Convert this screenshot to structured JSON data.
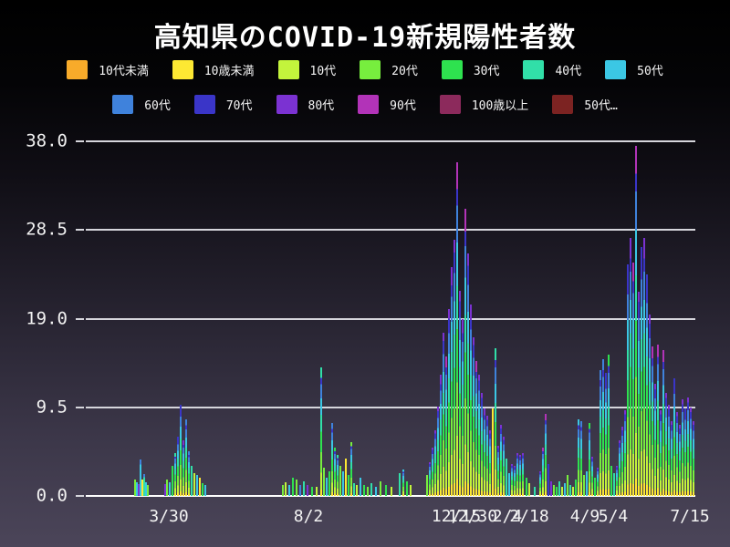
{
  "title": "高知県のCOVID-19新規陽性者数",
  "legend": {
    "position": "top",
    "rows": [
      [
        {
          "label": "10代未満",
          "color": "#f8ab2a"
        },
        {
          "label": "10歳未満",
          "color": "#fde833"
        },
        {
          "label": "10代",
          "color": "#c3f43c"
        },
        {
          "label": "20代",
          "color": "#77ee3e"
        },
        {
          "label": "30代",
          "color": "#2ee24f"
        },
        {
          "label": "40代",
          "color": "#31dfa8"
        },
        {
          "label": "50代",
          "color": "#3bc7e4"
        }
      ],
      [
        {
          "label": "60代",
          "color": "#3f82dc"
        },
        {
          "label": "70代",
          "color": "#3a35c8"
        },
        {
          "label": "80代",
          "color": "#7b32d2"
        },
        {
          "label": "90代",
          "color": "#b233b8"
        },
        {
          "label": "100歳以上",
          "color": "#8c2a5c"
        },
        {
          "label": "50代…",
          "color": "#7c2322"
        }
      ]
    ]
  },
  "chart_data": {
    "type": "bar",
    "stacked": true,
    "title": "高知県のCOVID-19新規陽性者数",
    "xlabel": "",
    "ylabel": "",
    "ylim": [
      0,
      38
    ],
    "grid": true,
    "background": "dark-gradient",
    "series_names": [
      "10代未満",
      "10歳未満",
      "10代",
      "20代",
      "30代",
      "40代",
      "50代",
      "60代",
      "70代",
      "80代",
      "90代",
      "100歳以上",
      "50代…"
    ],
    "y_ticks": [
      {
        "v": 0,
        "label": "0.0"
      },
      {
        "v": 9.5,
        "label": "9.5"
      },
      {
        "v": 19,
        "label": "19.0"
      },
      {
        "v": 28.5,
        "label": "28.5"
      },
      {
        "v": 38,
        "label": "38.0"
      }
    ],
    "x_ticks": [
      {
        "label": "3/30",
        "x": 185
      },
      {
        "label": "8/2",
        "x": 338
      },
      {
        "label": "12/15",
        "x": 500
      },
      {
        "label": "12/30",
        "x": 518
      },
      {
        "label": "2/4",
        "x": 556
      },
      {
        "label": "2/18",
        "x": 580
      },
      {
        "label": "4/9",
        "x": 641
      },
      {
        "label": "5/4",
        "x": 672
      },
      {
        "label": "7/15",
        "x": 756
      }
    ],
    "palette": [
      "#f8ab2a",
      "#fde833",
      "#c3f43c",
      "#77ee3e",
      "#2ee24f",
      "#31dfa8",
      "#3bc7e4",
      "#3f82dc",
      "#3a35c8",
      "#7b32d2",
      "#b233b8",
      "#8c2a5c",
      "#7c2322"
    ],
    "gradient_stops": [
      [
        0.05,
        "#fde833"
      ],
      [
        0.18,
        "#c3f43c"
      ],
      [
        0.34,
        "#77ee3e"
      ],
      [
        0.5,
        "#2ee24f"
      ],
      [
        0.63,
        "#31dfa8"
      ],
      [
        0.76,
        "#3bc7e4"
      ],
      [
        0.87,
        "#3f82dc"
      ],
      [
        0.95,
        "#3a35c8"
      ],
      [
        1.0,
        "#7b32d2"
      ]
    ],
    "bars": [
      [
        148,
        1.8,
        3
      ],
      [
        150,
        1.5,
        6
      ],
      [
        152,
        1.3,
        9
      ],
      [
        154,
        3.9,
        6,
        7
      ],
      [
        156,
        1.8,
        1
      ],
      [
        158,
        2.3,
        5,
        7
      ],
      [
        160,
        1.5,
        6
      ],
      [
        162,
        1.2,
        3
      ],
      [
        181,
        1.3,
        9
      ],
      [
        183,
        1.8,
        3
      ],
      [
        186,
        1.5,
        6
      ],
      [
        189,
        3.2,
        4
      ],
      [
        192,
        4.6,
        null,
        5
      ],
      [
        195,
        6.4,
        null,
        8
      ],
      [
        198,
        9.8,
        null,
        8
      ],
      [
        201,
        6.0,
        null,
        9
      ],
      [
        204,
        8.2,
        null,
        7
      ],
      [
        207,
        4.8,
        null,
        7
      ],
      [
        210,
        3.2,
        5
      ],
      [
        213,
        2.4,
        2
      ],
      [
        216,
        2.2,
        6
      ],
      [
        219,
        2.0,
        1
      ],
      [
        222,
        1.4,
        4
      ],
      [
        225,
        1.2,
        6
      ],
      [
        310,
        1.2,
        3
      ],
      [
        313,
        1.5,
        2
      ],
      [
        317,
        1.2,
        6
      ],
      [
        321,
        2.0,
        4
      ],
      [
        325,
        1.8,
        3
      ],
      [
        329,
        1.2,
        7
      ],
      [
        333,
        1.6,
        5
      ],
      [
        337,
        1.2,
        9
      ],
      [
        342,
        1.0,
        4
      ],
      [
        347,
        1.0,
        2
      ],
      [
        352,
        13.8,
        null,
        5
      ],
      [
        355,
        3.0,
        3
      ],
      [
        358,
        2.0,
        6
      ],
      [
        361,
        2.6,
        4
      ],
      [
        364,
        7.8,
        null,
        7
      ],
      [
        367,
        5.2,
        null,
        4
      ],
      [
        370,
        4.4,
        null,
        5
      ],
      [
        373,
        3.2,
        3
      ],
      [
        376,
        2.6,
        6
      ],
      [
        379,
        4.0,
        1
      ],
      [
        382,
        2.2,
        4
      ],
      [
        385,
        5.8,
        null,
        3
      ],
      [
        388,
        1.4,
        5
      ],
      [
        391,
        1.2,
        2
      ],
      [
        395,
        2.0,
        6
      ],
      [
        399,
        1.2,
        4
      ],
      [
        403,
        1.0,
        3
      ],
      [
        407,
        1.4,
        5
      ],
      [
        412,
        1.0,
        6
      ],
      [
        417,
        1.6,
        3
      ],
      [
        423,
        1.2,
        4
      ],
      [
        429,
        1.0,
        2
      ],
      [
        438,
        2.4,
        5
      ],
      [
        442,
        2.8,
        null,
        6
      ],
      [
        446,
        1.6,
        4
      ],
      [
        450,
        1.2,
        2
      ],
      [
        468,
        2.2,
        3
      ],
      [
        471,
        3.6
      ],
      [
        474,
        5.2
      ],
      [
        477,
        7.0
      ],
      [
        480,
        9.6
      ],
      [
        483,
        13.0,
        null,
        9
      ],
      [
        486,
        17.5
      ],
      [
        489,
        15.0,
        null,
        10
      ],
      [
        492,
        20.0
      ],
      [
        495,
        24.5,
        null,
        9
      ],
      [
        498,
        27.5
      ],
      [
        501,
        35.8,
        null,
        10
      ],
      [
        504,
        22.0
      ],
      [
        507,
        19.0,
        null,
        9
      ],
      [
        510,
        30.8,
        null,
        10
      ],
      [
        513,
        26.0
      ],
      [
        516,
        20.5,
        null,
        9
      ],
      [
        519,
        17.0
      ],
      [
        522,
        14.5,
        null,
        10
      ],
      [
        525,
        13.0
      ],
      [
        528,
        11.0
      ],
      [
        531,
        9.4,
        null,
        9
      ],
      [
        534,
        8.6
      ],
      [
        537,
        7.0
      ],
      [
        540,
        9.4,
        1
      ],
      [
        543,
        15.8,
        null,
        5
      ],
      [
        546,
        5.4
      ],
      [
        549,
        7.6
      ],
      [
        552,
        6.4
      ],
      [
        555,
        4.0,
        5
      ],
      [
        558,
        2.4,
        6
      ],
      [
        561,
        3.4
      ],
      [
        564,
        3.2
      ],
      [
        567,
        4.6
      ],
      [
        570,
        4.4
      ],
      [
        573,
        4.6
      ],
      [
        577,
        2.0,
        4
      ],
      [
        580,
        1.4,
        2
      ],
      [
        586,
        1.0,
        5
      ],
      [
        592,
        2.6
      ],
      [
        595,
        5.2,
        null,
        10
      ],
      [
        598,
        8.8,
        null,
        10
      ],
      [
        601,
        3.4,
        8
      ],
      [
        604,
        1.6,
        9
      ],
      [
        607,
        1.2,
        3
      ],
      [
        610,
        1.0,
        4
      ],
      [
        613,
        1.6,
        5
      ],
      [
        616,
        1.0,
        2
      ],
      [
        619,
        1.4,
        6
      ],
      [
        622,
        2.2,
        3
      ],
      [
        625,
        1.2,
        5
      ],
      [
        628,
        1.0,
        2
      ],
      [
        631,
        1.8,
        4
      ],
      [
        634,
        8.2,
        null,
        6
      ],
      [
        637,
        8.0,
        null,
        7
      ],
      [
        640,
        2.2,
        3
      ],
      [
        643,
        2.6,
        6
      ],
      [
        646,
        7.8,
        null,
        4
      ],
      [
        649,
        4.2
      ],
      [
        652,
        2.0,
        4
      ],
      [
        655,
        3.0
      ],
      [
        658,
        13.5,
        null,
        7
      ],
      [
        661,
        14.7,
        null,
        7
      ],
      [
        664,
        13.2,
        null,
        8
      ],
      [
        667,
        15.2,
        null,
        4
      ],
      [
        670,
        3.2,
        4
      ],
      [
        673,
        2.4,
        5
      ],
      [
        676,
        3.2
      ],
      [
        679,
        6.0
      ],
      [
        682,
        7.4
      ],
      [
        685,
        9.2
      ],
      [
        688,
        24.8,
        null,
        8
      ],
      [
        691,
        27.7,
        null,
        9
      ],
      [
        694,
        25.0,
        null,
        10
      ],
      [
        697,
        37.5,
        null,
        10
      ],
      [
        700,
        21.9
      ],
      [
        703,
        26.7,
        null,
        8
      ],
      [
        706,
        27.7,
        null,
        9
      ],
      [
        709,
        23.8,
        null,
        8
      ],
      [
        712,
        19.5
      ],
      [
        715,
        16.0,
        null,
        10
      ],
      [
        718,
        12.0
      ],
      [
        721,
        16.2,
        null,
        10
      ],
      [
        724,
        9.2
      ],
      [
        727,
        15.6,
        null,
        10
      ],
      [
        730,
        11.0
      ],
      [
        733,
        9.8
      ],
      [
        736,
        8.0
      ],
      [
        739,
        12.6,
        null,
        8
      ],
      [
        742,
        9.0
      ],
      [
        745,
        7.6
      ],
      [
        748,
        10.4
      ],
      [
        751,
        9.4,
        null,
        8
      ],
      [
        754,
        10.6
      ],
      [
        757,
        9.5
      ],
      [
        760,
        8.0
      ]
    ]
  }
}
